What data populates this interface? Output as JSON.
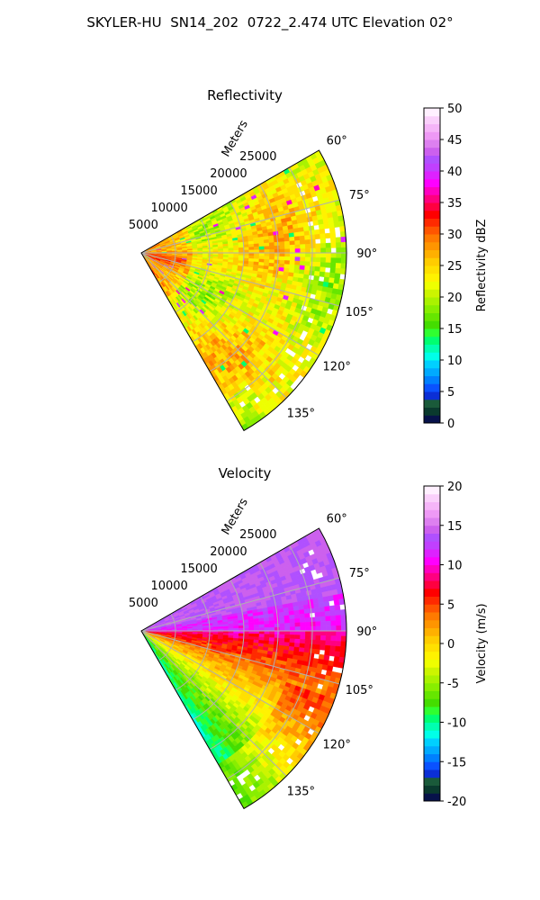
{
  "page_title": "SKYLER-HU  SN14_202  0722_2.474 UTC Elevation 02°",
  "chart_data": [
    {
      "type": "heatmap",
      "projection": "polar-sector",
      "title": "Reflectivity",
      "range_label": "Meters",
      "range_ticks": [
        5000,
        10000,
        15000,
        20000,
        25000
      ],
      "range_max": 30000,
      "azimuth_range": [
        60,
        150
      ],
      "azimuth_ticks": [
        "60°",
        "75°",
        "90°",
        "105°",
        "120°",
        "135°"
      ],
      "azimuth_tick_values": [
        60,
        75,
        90,
        105,
        120,
        135
      ],
      "grid": true,
      "colorbar": {
        "label": "Reflectivity dBZ",
        "min": 0,
        "max": 50,
        "ticks": [
          0,
          5,
          10,
          15,
          20,
          25,
          30,
          35,
          40,
          45,
          50
        ],
        "colors": [
          "#07124a",
          "#0a3a2e",
          "#1a5a3a",
          "#0b2fd6",
          "#0a52ff",
          "#0080ff",
          "#00aaff",
          "#00d0ff",
          "#00ffe8",
          "#00ffb0",
          "#00ff70",
          "#30ff30",
          "#44dd00",
          "#66e600",
          "#88ee00",
          "#aaf200",
          "#ccf500",
          "#eeff00",
          "#fff200",
          "#ffe000",
          "#ffcc00",
          "#ffb000",
          "#ff9500",
          "#ff7a00",
          "#ff5500",
          "#ff2a00",
          "#ff0000",
          "#ff0040",
          "#ff0080",
          "#ff00c0",
          "#ff00ff",
          "#dd22ff",
          "#c040ff",
          "#b050ff",
          "#cc60ee",
          "#dd80f0",
          "#ee99f5",
          "#f5b5f8",
          "#fad0fb",
          "#fff0ff"
        ]
      },
      "typical_value_range": [
        18,
        28
      ]
    },
    {
      "type": "heatmap",
      "projection": "polar-sector",
      "title": "Velocity",
      "range_label": "Meters",
      "range_ticks": [
        5000,
        10000,
        15000,
        20000,
        25000
      ],
      "range_max": 30000,
      "azimuth_range": [
        60,
        150
      ],
      "azimuth_ticks": [
        "60°",
        "75°",
        "90°",
        "105°",
        "120°",
        "135°"
      ],
      "azimuth_tick_values": [
        60,
        75,
        90,
        105,
        120,
        135
      ],
      "grid": true,
      "colorbar": {
        "label": "Velocity (m/s)",
        "min": -20,
        "max": 20,
        "ticks": [
          -20,
          -15,
          -10,
          -5,
          0,
          5,
          10,
          15,
          20
        ],
        "colors": [
          "#07124a",
          "#0a3a2e",
          "#1a5a3a",
          "#0b2fd6",
          "#0a52ff",
          "#0080ff",
          "#00aaff",
          "#00d0ff",
          "#00ffe8",
          "#00ffb0",
          "#00ff70",
          "#30ff30",
          "#44dd00",
          "#66e600",
          "#88ee00",
          "#aaf200",
          "#ccf500",
          "#eeff00",
          "#fff200",
          "#ffe000",
          "#ffcc00",
          "#ffb000",
          "#ff9500",
          "#ff7a00",
          "#ff5500",
          "#ff2a00",
          "#ff0000",
          "#ff0040",
          "#ff0080",
          "#ff00c0",
          "#ff00ff",
          "#dd22ff",
          "#c040ff",
          "#b050ff",
          "#cc60ee",
          "#dd80f0",
          "#ee99f5",
          "#f5b5f8",
          "#fad0fb",
          "#fff0ff"
        ]
      },
      "velocity_pattern": "positive (outbound) north of 90°, negative/low south of 90°"
    }
  ]
}
